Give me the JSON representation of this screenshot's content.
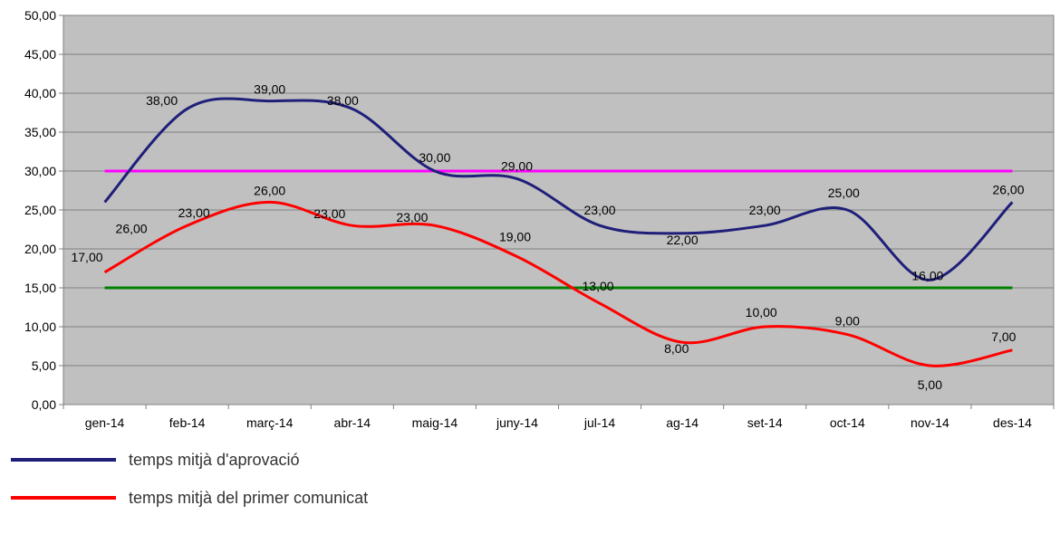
{
  "chart_data": {
    "type": "line",
    "categories": [
      "gen-14",
      "feb-14",
      "març-14",
      "abr-14",
      "maig-14",
      "juny-14",
      "jul-14",
      "ag-14",
      "set-14",
      "oct-14",
      "nov-14",
      "des-14"
    ],
    "series": [
      {
        "name": "temps mitjà d'aprovació",
        "color": "#1f1f7a",
        "values": [
          26,
          38,
          39,
          38,
          30,
          29,
          23,
          22,
          23,
          25,
          16,
          26
        ],
        "labels": [
          "26,00",
          "38,00",
          "39,00",
          "38,00",
          "30,00",
          "29,00",
          "23,00",
          "22,00",
          "23,00",
          "25,00",
          "16,00",
          "26,00"
        ]
      },
      {
        "name": "temps mitjà del primer comunicat",
        "color": "#ff0000",
        "values": [
          17,
          23,
          26,
          23,
          23,
          19,
          13,
          8,
          10,
          9,
          5,
          7
        ],
        "labels": [
          "17,00",
          "23,00",
          "26,00",
          "23,00",
          "23,00",
          "19,00",
          "13,00",
          "8,00",
          "10,00",
          "9,00",
          "5,00",
          "7,00"
        ]
      }
    ],
    "reference_lines": [
      {
        "value": 30,
        "color": "#ff00ff"
      },
      {
        "value": 15,
        "color": "#008000"
      }
    ],
    "ylim": [
      0,
      50
    ],
    "yticks": [
      "0,00",
      "5,00",
      "10,00",
      "15,00",
      "20,00",
      "25,00",
      "30,00",
      "35,00",
      "40,00",
      "45,00",
      "50,00"
    ],
    "grid": true,
    "plot_background": "#c0c0c0",
    "legend_position": "bottom-left"
  }
}
